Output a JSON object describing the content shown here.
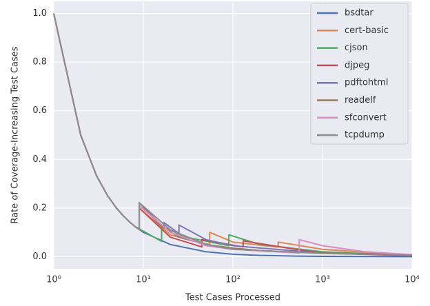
{
  "chart_data": {
    "type": "line",
    "xlabel": "Test Cases Processed",
    "ylabel": "Rate of Coverage-Increasing Test Cases",
    "xscale": "log",
    "xlim": [
      1,
      10000
    ],
    "xticks": [
      {
        "value": 1,
        "label": "10⁰"
      },
      {
        "value": 10,
        "label": "10¹"
      },
      {
        "value": 100,
        "label": "10²"
      },
      {
        "value": 1000,
        "label": "10³"
      },
      {
        "value": 10000,
        "label": "10⁴"
      }
    ],
    "ylim": [
      -0.05,
      1.05
    ],
    "yticks": [
      {
        "value": 0,
        "label": "0.0"
      },
      0.2,
      0.4,
      0.6,
      0.8,
      {
        "value": 1,
        "label": "1.0"
      }
    ],
    "grid": true,
    "legend": "upper right",
    "series": [
      {
        "name": "bsdtar",
        "color": "#4c72b0",
        "x": [
          1,
          2,
          3,
          4,
          5,
          6,
          7,
          8,
          10,
          20,
          50,
          100,
          200,
          500,
          1000,
          10000
        ],
        "values": [
          1,
          0.5,
          0.333,
          0.25,
          0.2,
          0.167,
          0.143,
          0.125,
          0.1,
          0.05,
          0.02,
          0.01,
          0.005,
          0.002,
          0.001,
          0.0001
        ]
      },
      {
        "name": "cert-basic",
        "color": "#dd8452",
        "x": [
          1,
          2,
          3,
          4,
          5,
          6,
          7,
          8,
          9,
          9,
          20,
          40,
          55,
          55,
          100,
          300,
          320,
          320,
          1000,
          10000
        ],
        "values": [
          1,
          0.5,
          0.333,
          0.25,
          0.2,
          0.167,
          0.143,
          0.125,
          0.111,
          0.2,
          0.09,
          0.06,
          0.05,
          0.1,
          0.06,
          0.04,
          0.04,
          0.06,
          0.03,
          0.005
        ]
      },
      {
        "name": "cjson",
        "color": "#55a868",
        "x": [
          1,
          2,
          3,
          4,
          5,
          6,
          7,
          8,
          16,
          16,
          30,
          90,
          90,
          200,
          1000,
          10000
        ],
        "values": [
          1,
          0.5,
          0.333,
          0.25,
          0.2,
          0.167,
          0.143,
          0.125,
          0.0625,
          0.125,
          0.08,
          0.045,
          0.09,
          0.05,
          0.02,
          0.004
        ]
      },
      {
        "name": "djpeg",
        "color": "#c44e52",
        "x": [
          1,
          2,
          3,
          4,
          5,
          6,
          7,
          8,
          9,
          9,
          20,
          45,
          45,
          130,
          130,
          500,
          1000,
          10000
        ],
        "values": [
          1,
          0.5,
          0.333,
          0.25,
          0.2,
          0.167,
          0.143,
          0.125,
          0.111,
          0.2,
          0.08,
          0.04,
          0.07,
          0.04,
          0.065,
          0.03,
          0.015,
          0.003
        ]
      },
      {
        "name": "pdftohtml",
        "color": "#8172b3",
        "x": [
          1,
          2,
          3,
          4,
          5,
          6,
          7,
          8,
          9,
          9,
          17,
          17,
          25,
          25,
          50,
          100,
          300,
          1000,
          10000
        ],
        "values": [
          1,
          0.5,
          0.333,
          0.25,
          0.2,
          0.167,
          0.143,
          0.125,
          0.111,
          0.222,
          0.118,
          0.14,
          0.095,
          0.13,
          0.07,
          0.045,
          0.03,
          0.015,
          0.005
        ]
      },
      {
        "name": "readelf",
        "color": "#937860",
        "x": [
          1,
          2,
          3,
          4,
          5,
          6,
          7,
          8,
          9,
          9,
          15,
          25,
          50,
          100,
          200,
          500,
          1000,
          3000,
          10000
        ],
        "values": [
          1,
          0.5,
          0.333,
          0.25,
          0.2,
          0.167,
          0.143,
          0.125,
          0.111,
          0.222,
          0.133,
          0.08,
          0.05,
          0.035,
          0.025,
          0.018,
          0.015,
          0.012,
          0.008
        ]
      },
      {
        "name": "sfconvert",
        "color": "#da8bc3",
        "x": [
          1,
          2,
          3,
          4,
          5,
          6,
          7,
          8,
          9,
          9,
          20,
          50,
          100,
          300,
          550,
          550,
          1000,
          3000,
          10000
        ],
        "values": [
          1,
          0.5,
          0.333,
          0.25,
          0.2,
          0.167,
          0.143,
          0.125,
          0.111,
          0.21,
          0.1,
          0.045,
          0.03,
          0.02,
          0.015,
          0.07,
          0.045,
          0.02,
          0.008
        ]
      },
      {
        "name": "tcpdump",
        "color": "#8c8c8c",
        "x": [
          1,
          2,
          3,
          4,
          5,
          6,
          7,
          8,
          9,
          9,
          20,
          50,
          100,
          200,
          1000,
          10000
        ],
        "values": [
          1,
          0.5,
          0.333,
          0.25,
          0.2,
          0.167,
          0.143,
          0.125,
          0.111,
          0.222,
          0.11,
          0.05,
          0.03,
          0.025,
          0.013,
          0.006
        ]
      }
    ]
  }
}
